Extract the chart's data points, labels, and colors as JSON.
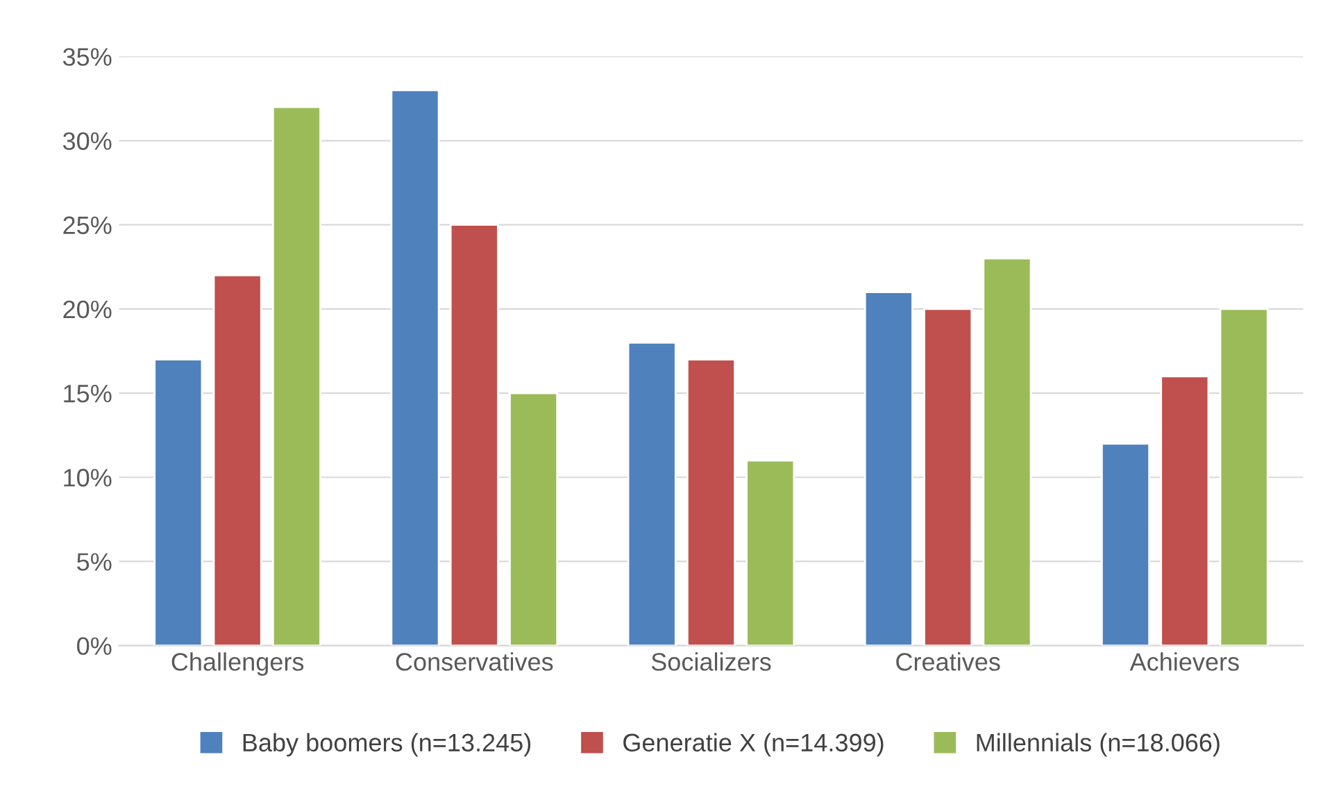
{
  "chart_data": {
    "type": "bar",
    "categories": [
      "Challengers",
      "Conservatives",
      "Socializers",
      "Creatives",
      "Achievers"
    ],
    "series": [
      {
        "name": "Baby boomers (n=13.245)",
        "color": "#4f81bd",
        "values": [
          17,
          33,
          18,
          21,
          12
        ]
      },
      {
        "name": "Generatie X (n=14.399)",
        "color": "#c0504d",
        "values": [
          22,
          25,
          17,
          20,
          16
        ]
      },
      {
        "name": "Millennials (n=18.066)",
        "color": "#9bbb59",
        "values": [
          32,
          15,
          11,
          23,
          20
        ]
      }
    ],
    "ylim": [
      0,
      35
    ],
    "yticks": [
      {
        "value": 0,
        "label": "0%"
      },
      {
        "value": 5,
        "label": "5%"
      },
      {
        "value": 10,
        "label": "10%"
      },
      {
        "value": 15,
        "label": "15%"
      },
      {
        "value": 20,
        "label": "20%"
      },
      {
        "value": 25,
        "label": "25%"
      },
      {
        "value": 30,
        "label": "30%"
      },
      {
        "value": 35,
        "label": "35%"
      }
    ],
    "grid": "y",
    "legend": "bottom"
  }
}
